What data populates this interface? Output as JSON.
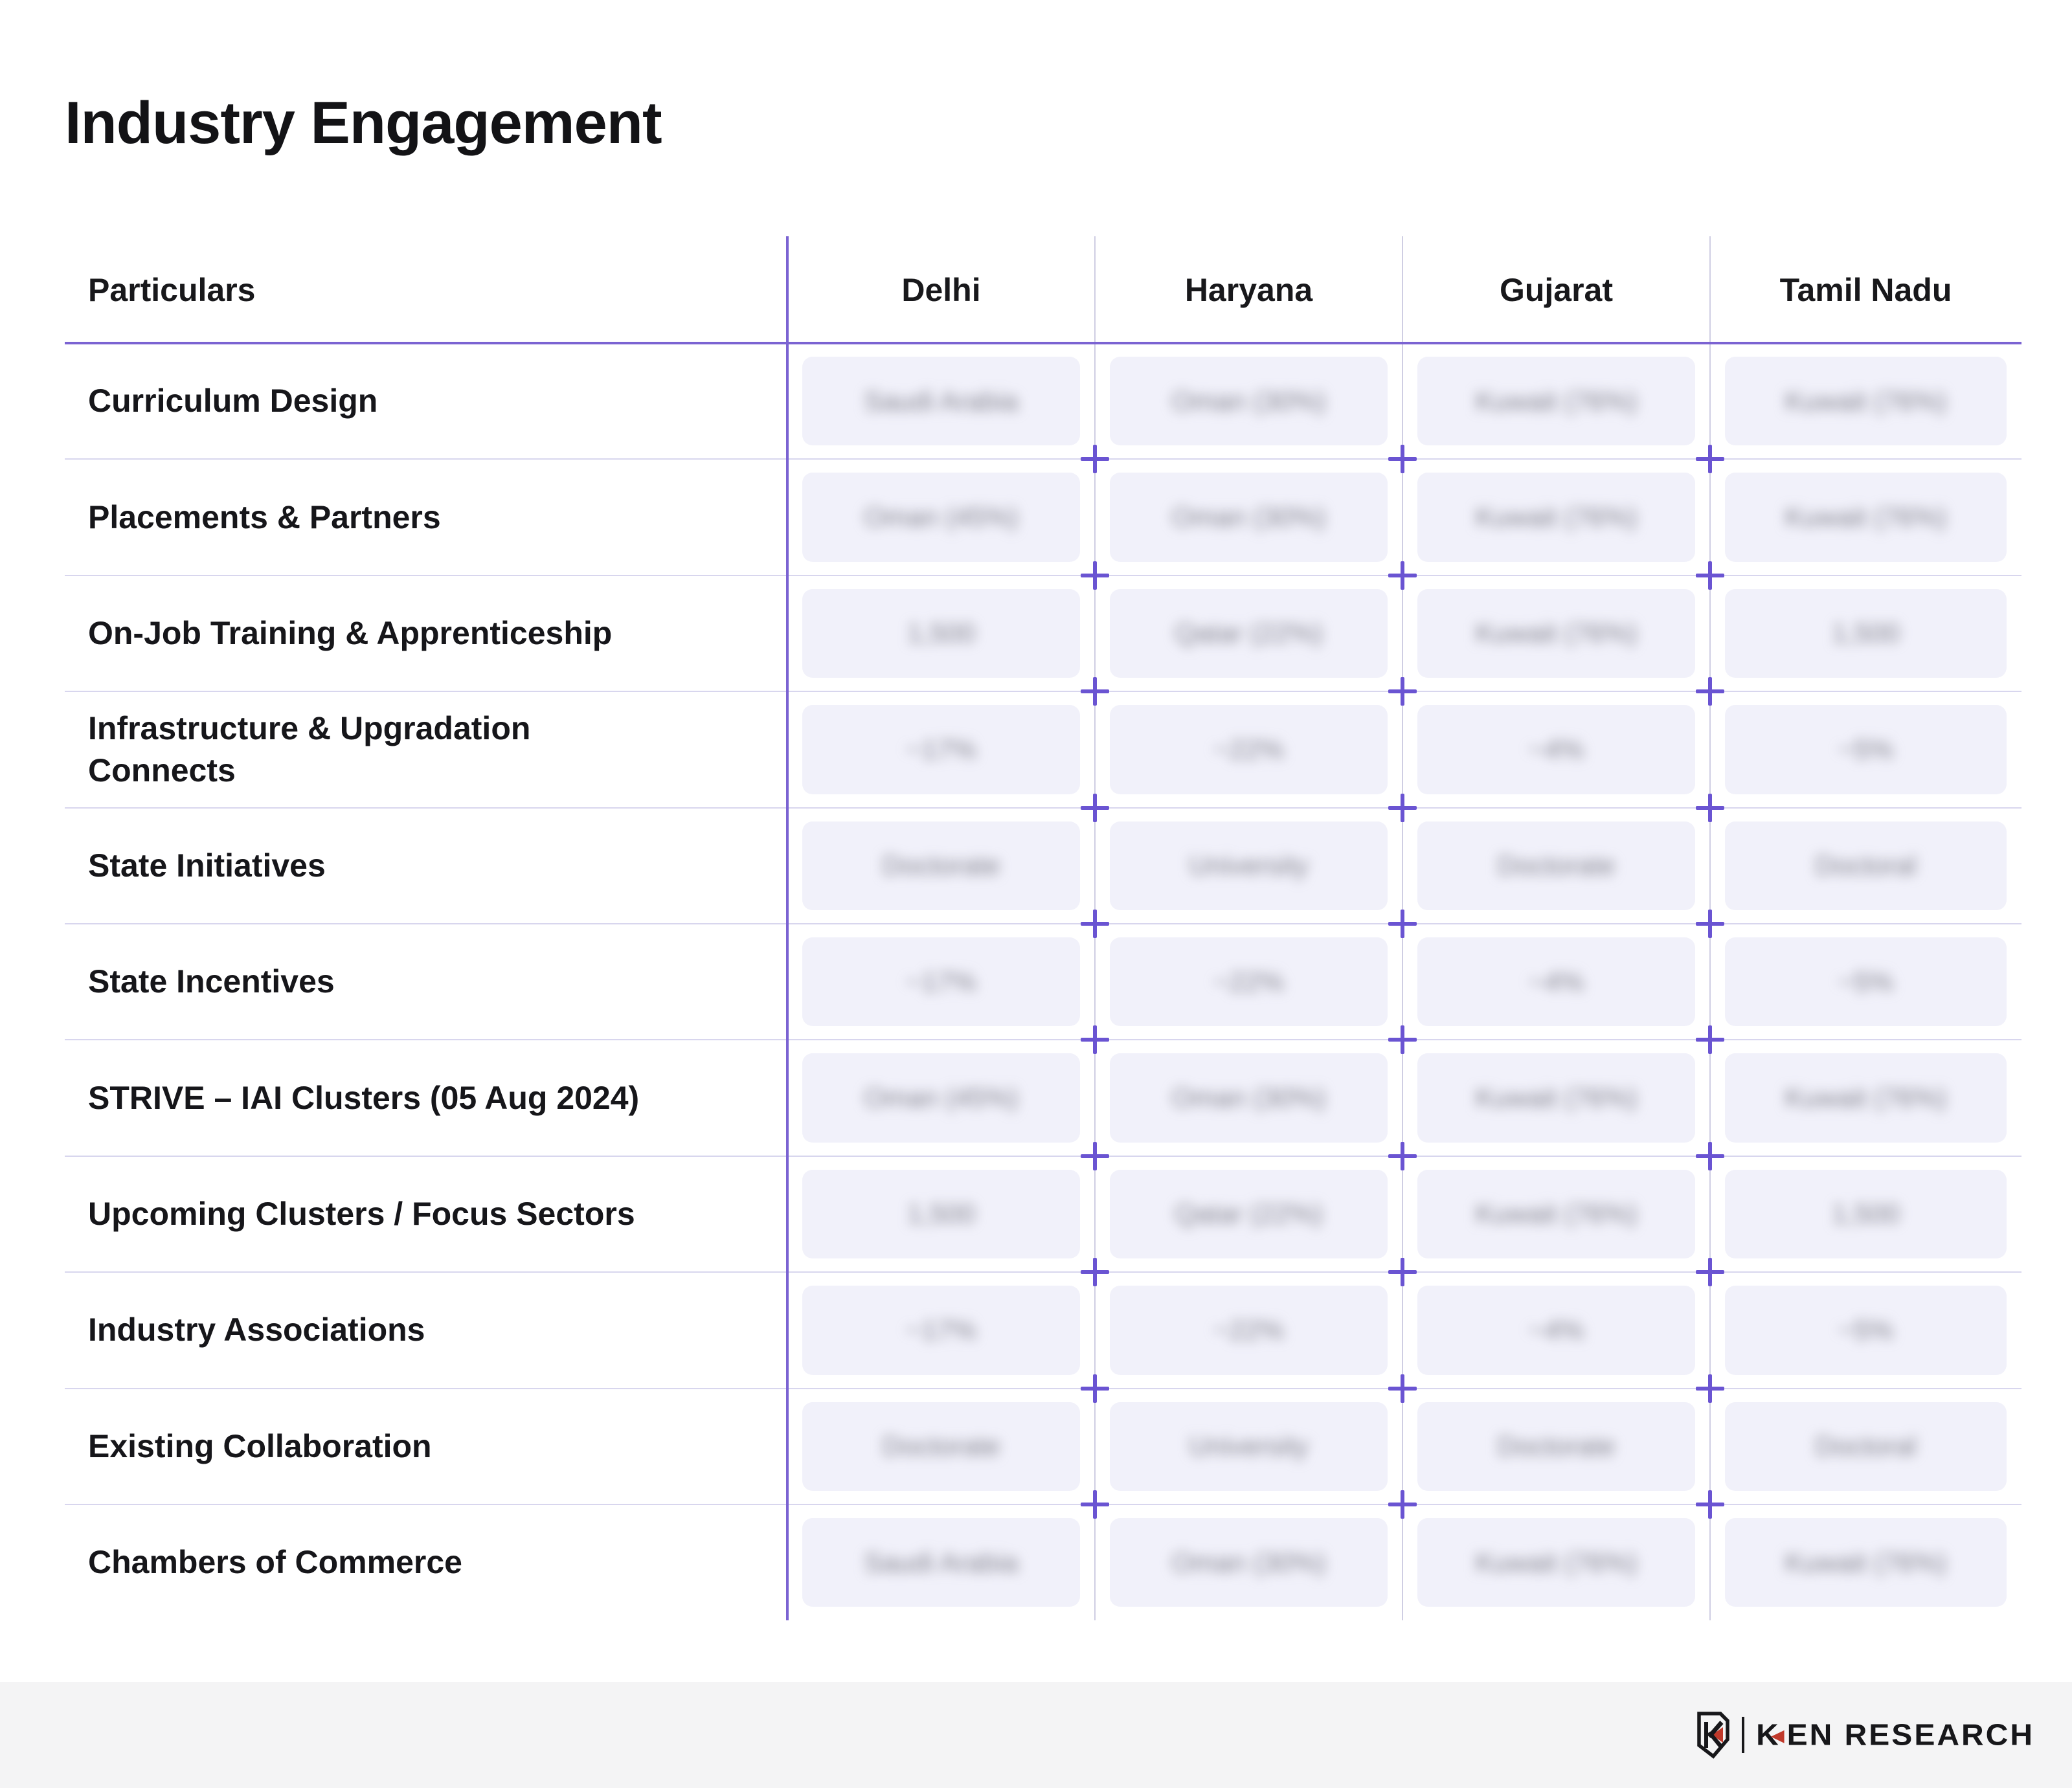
{
  "page": {
    "title": "Industry Engagement"
  },
  "table": {
    "values_blurred": true,
    "columns": [
      {
        "label": "Particulars"
      },
      {
        "label": "Delhi"
      },
      {
        "label": "Haryana"
      },
      {
        "label": "Gujarat"
      },
      {
        "label": "Tamil Nadu"
      }
    ],
    "rows": [
      {
        "label": "Curriculum Design",
        "values": [
          "Saudi Arabia",
          "Oman (30%)",
          "Kuwait (76%)",
          "Kuwait (76%)"
        ]
      },
      {
        "label": "Placements & Partners",
        "values": [
          "Oman (45%)",
          "Oman (30%)",
          "Kuwait (76%)",
          "Kuwait (76%)"
        ]
      },
      {
        "label": "On-Job Training & Apprenticeship",
        "values": [
          "1,500",
          "Qatar (22%)",
          "Kuwait (76%)",
          "1,500"
        ]
      },
      {
        "label": "Infrastructure & Upgradation Connects",
        "values": [
          "~17%",
          "~22%",
          "~4%",
          "~5%"
        ]
      },
      {
        "label": "State Initiatives",
        "values": [
          "Doctorate",
          "University",
          "Doctorate",
          "Doctoral"
        ]
      },
      {
        "label": "State Incentives",
        "values": [
          "~17%",
          "~22%",
          "~4%",
          "~5%"
        ]
      },
      {
        "label": "STRIVE – IAI Clusters (05 Aug 2024)",
        "values": [
          "Oman (45%)",
          "Oman (30%)",
          "Kuwait (76%)",
          "Kuwait (76%)"
        ]
      },
      {
        "label": "Upcoming Clusters / Focus Sectors",
        "values": [
          "1,500",
          "Qatar (22%)",
          "Kuwait (76%)",
          "1,500"
        ]
      },
      {
        "label": "Industry Associations",
        "values": [
          "~17%",
          "~22%",
          "~4%",
          "~5%"
        ]
      },
      {
        "label": "Existing Collaboration",
        "values": [
          "Doctorate",
          "University",
          "Doctorate",
          "Doctoral"
        ]
      },
      {
        "label": "Chambers of Commerce",
        "values": [
          "Saudi Arabia",
          "Oman (30%)",
          "Kuwait (76%)",
          "Kuwait (76%)"
        ]
      }
    ]
  },
  "footer": {
    "logo_k": "K",
    "logo_rest": "EN RESEARCH"
  },
  "colors": {
    "accent_purple": "#7b63d2",
    "plus_purple": "#6a54d2",
    "row_divider": "#d8d6ee",
    "column_separator": "#cfcee3",
    "cell_pill_bg": "#f1f1fa",
    "blurred_text": "#84848f",
    "footer_bg": "#f4f4f5",
    "logo_red": "#c0392b",
    "text": "#16161a"
  }
}
